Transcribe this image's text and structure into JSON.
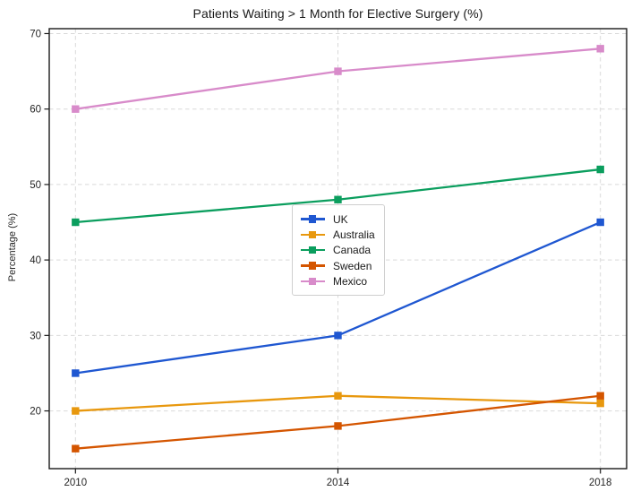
{
  "chart_data": {
    "type": "line",
    "title": "Patients Waiting > 1 Month for Elective Surgery (%)",
    "xlabel": "",
    "ylabel": "Percentage (%)",
    "x": [
      2010,
      2014,
      2018
    ],
    "x_tick_labels": [
      "2010",
      "2014",
      "2018"
    ],
    "y_ticks": [
      20,
      30,
      40,
      50,
      60,
      70
    ],
    "xlim": [
      2009.6,
      2018.4
    ],
    "ylim": [
      12.35,
      70.65
    ],
    "grid": true,
    "grid_style": "dashed",
    "legend_position": "center",
    "marker": "square",
    "series": [
      {
        "name": "UK",
        "color": "#1f57d1",
        "values": [
          25,
          30,
          45
        ]
      },
      {
        "name": "Australia",
        "color": "#e8980e",
        "values": [
          20,
          22,
          21
        ]
      },
      {
        "name": "Canada",
        "color": "#0b9e5e",
        "values": [
          45,
          48,
          52
        ]
      },
      {
        "name": "Sweden",
        "color": "#d45500",
        "values": [
          15,
          18,
          22
        ]
      },
      {
        "name": "Mexico",
        "color": "#d88bca",
        "values": [
          60,
          65,
          68
        ]
      }
    ],
    "colors": {
      "spine": "#1a1a1a",
      "grid": "#d9d9d9",
      "background": "#ffffff"
    }
  }
}
